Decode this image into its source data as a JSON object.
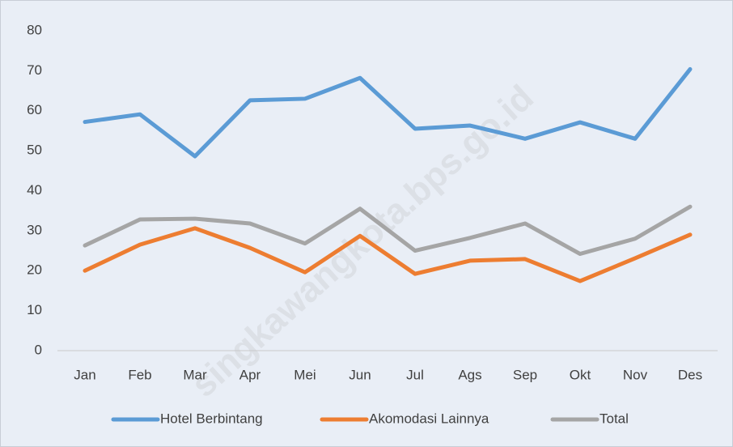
{
  "chart_data": {
    "type": "line",
    "categories": [
      "Jan",
      "Feb",
      "Mar",
      "Apr",
      "Mei",
      "Jun",
      "Jul",
      "Ags",
      "Sep",
      "Okt",
      "Nov",
      "Des"
    ],
    "series": [
      {
        "name": "Hotel Berbintang",
        "color": "#5b9bd5",
        "values": [
          57.2,
          59.1,
          48.6,
          62.6,
          63,
          68.2,
          55.5,
          56.3,
          53,
          57.1,
          53,
          70.4
        ]
      },
      {
        "name": "Akomodasi Lainnya",
        "color": "#ed7d31",
        "values": [
          20,
          26.5,
          30.6,
          25.7,
          19.6,
          28.7,
          19.2,
          22.5,
          22.9,
          17.4,
          23.1,
          29
        ]
      },
      {
        "name": "Total",
        "color": "#a5a5a5",
        "values": [
          26.3,
          32.8,
          33,
          31.8,
          26.8,
          35.5,
          25,
          28.2,
          31.8,
          24.2,
          28,
          36
        ]
      }
    ],
    "ylim": [
      0,
      80
    ],
    "yticks": [
      0,
      10,
      20,
      30,
      40,
      50,
      60,
      70,
      80
    ],
    "grid": false,
    "legend": "bottom",
    "watermark": "singkawangkota.bps.go.id"
  }
}
